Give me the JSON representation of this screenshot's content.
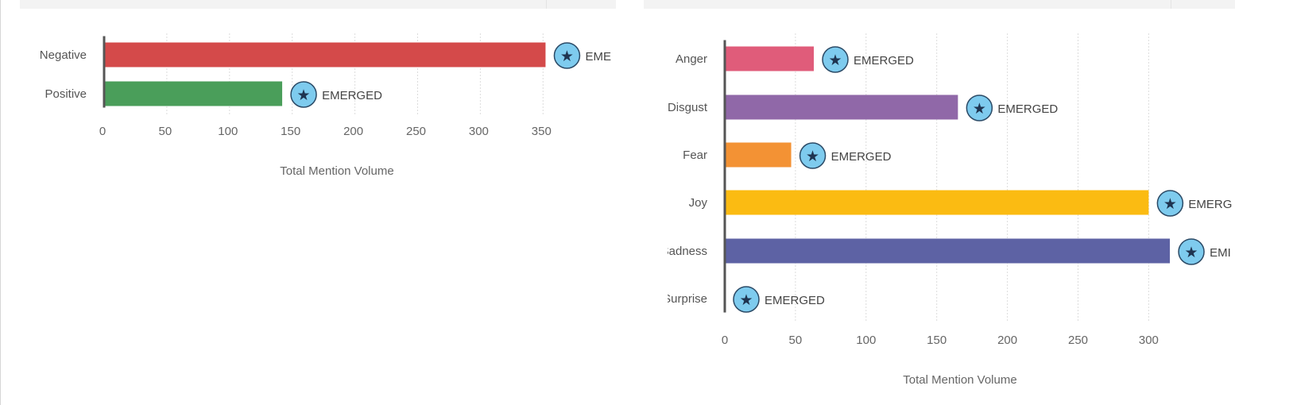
{
  "chart_data": [
    {
      "type": "bar",
      "orientation": "horizontal",
      "categories": [
        "Negative",
        "Positive"
      ],
      "values": [
        352,
        142
      ],
      "colors": [
        "#d44a4a",
        "#4a9e5a"
      ],
      "annotation_text": "EMERGED",
      "annotation_icon": "star-icon",
      "annotation_visible_text": [
        "EME",
        "EMERGED"
      ],
      "xlabel": "Total Mention Volume",
      "xlim": [
        0,
        360
      ],
      "xticks": [
        "0",
        "50",
        "100",
        "150",
        "200",
        "250",
        "300",
        "350"
      ],
      "grid": true
    },
    {
      "type": "bar",
      "orientation": "horizontal",
      "categories": [
        "Anger",
        "Disgust",
        "Fear",
        "Joy",
        "Sadness",
        "Surprise"
      ],
      "values": [
        63,
        165,
        47,
        300,
        315,
        0
      ],
      "colors": [
        "#e05c7a",
        "#9068a8",
        "#f39234",
        "#fbbb12",
        "#5d62a4",
        "#5d62a4"
      ],
      "annotation_text": "EMERGED",
      "annotation_icon": "star-icon",
      "annotation_visible_text": [
        "EMERGED",
        "EMERGED",
        "EMERGED",
        "EMERG",
        "EMI",
        "EMERGED"
      ],
      "xlabel": "Total Mention Volume",
      "xlim": [
        0,
        360
      ],
      "xticks": [
        "0",
        "50",
        "100",
        "150",
        "200",
        "250",
        "300"
      ],
      "grid": true
    }
  ],
  "theme": {
    "text_color": "#555555",
    "grid_color": "#dcdcdc",
    "baseline_color": "#555555",
    "badge_fill": "#7ecbee",
    "badge_stroke": "#2b4a66",
    "star_color": "#1f3450",
    "header_color": "#f3f3f3"
  }
}
